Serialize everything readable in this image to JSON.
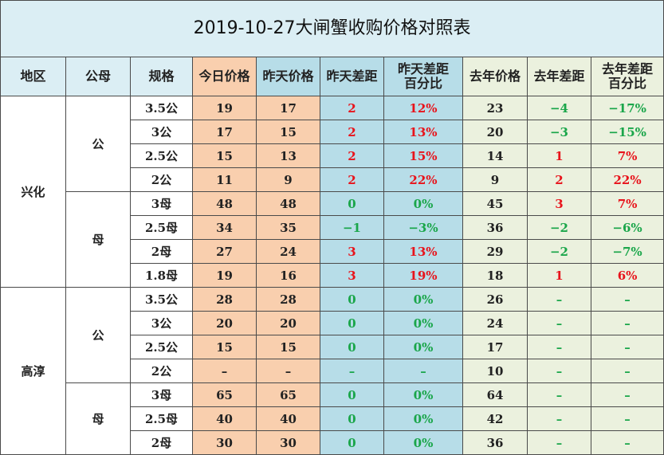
{
  "title": "2019-10-27大闸蟹收购价格对照表",
  "columns": [
    [
      "地区"
    ],
    [
      "公母"
    ],
    [
      "规格"
    ],
    [
      "今日价格"
    ],
    [
      "昨天价格"
    ],
    [
      "昨天差距"
    ],
    [
      "昨天差距",
      "百分比"
    ],
    [
      "去年价格"
    ],
    [
      "去年差距"
    ],
    [
      "去年差距",
      "百分比"
    ]
  ],
  "groups": [
    {
      "region": "兴化",
      "genders": [
        {
          "gender": "公",
          "rows": [
            [
              "3.5公",
              "19",
              "17",
              "2",
              "12%",
              "23",
              "−4",
              "−17%"
            ],
            [
              "3公",
              "17",
              "15",
              "2",
              "13%",
              "20",
              "−3",
              "−15%"
            ],
            [
              "2.5公",
              "15",
              "13",
              "2",
              "15%",
              "14",
              "1",
              "7%"
            ],
            [
              "2公",
              "11",
              "9",
              "2",
              "22%",
              "9",
              "2",
              "22%"
            ]
          ]
        },
        {
          "gender": "母",
          "rows": [
            [
              "3母",
              "48",
              "48",
              "0",
              "0%",
              "45",
              "3",
              "7%"
            ],
            [
              "2.5母",
              "34",
              "35",
              "−1",
              "−3%",
              "36",
              "−2",
              "−6%"
            ],
            [
              "2母",
              "27",
              "24",
              "3",
              "13%",
              "29",
              "−2",
              "−7%"
            ],
            [
              "1.8母",
              "19",
              "16",
              "3",
              "19%",
              "18",
              "1",
              "6%"
            ]
          ]
        }
      ]
    },
    {
      "region": "高淳",
      "genders": [
        {
          "gender": "公",
          "rows": [
            [
              "3.5公",
              "28",
              "28",
              "0",
              "0%",
              "26",
              "–",
              "–"
            ],
            [
              "3公",
              "20",
              "20",
              "0",
              "0%",
              "24",
              "–",
              "–"
            ],
            [
              "2.5公",
              "15",
              "15",
              "0",
              "0%",
              "17",
              "–",
              "–"
            ],
            [
              "2公",
              "–",
              "–",
              "–",
              "–",
              "10",
              "–",
              "–"
            ]
          ]
        },
        {
          "gender": "母",
          "rows": [
            [
              "3母",
              "65",
              "65",
              "0",
              "0%",
              "64",
              "–",
              "–"
            ],
            [
              "2.5母",
              "40",
              "40",
              "0",
              "0%",
              "42",
              "–",
              "–"
            ],
            [
              "2母",
              "30",
              "30",
              "0",
              "0%",
              "36",
              "–",
              "–"
            ]
          ]
        }
      ]
    }
  ]
}
